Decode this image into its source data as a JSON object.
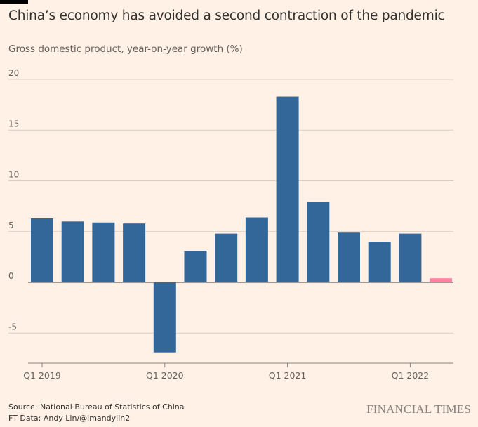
{
  "title": "China’s economy has avoided a second contraction of the pandemic",
  "subtitle": "Gross domestic product, year-on-year growth (%)",
  "source": "Source: National Bureau of Statistics of China",
  "credit": "FT Data: Andy Lin/@imandylin2",
  "brand": "FINANCIAL TIMES",
  "chart_data": {
    "type": "bar",
    "categories": [
      "Q1 2019",
      "Q2 2019",
      "Q3 2019",
      "Q4 2019",
      "Q1 2020",
      "Q2 2020",
      "Q3 2020",
      "Q4 2020",
      "Q1 2021",
      "Q2 2021",
      "Q3 2021",
      "Q4 2021",
      "Q1 2022",
      "Q2 2022"
    ],
    "values": [
      6.3,
      6.0,
      5.9,
      5.8,
      -6.9,
      3.1,
      4.8,
      6.4,
      18.3,
      7.9,
      4.9,
      4.0,
      4.8,
      0.4
    ],
    "highlight_index": 13,
    "colors": {
      "bar": "#336699",
      "highlight": "#ff7fa3"
    },
    "ylim": [
      -8,
      20
    ],
    "yticks": [
      20,
      15,
      10,
      5,
      0,
      -5
    ],
    "ytick_labels": [
      "20",
      "15",
      "10",
      "5",
      "0",
      "-5"
    ],
    "xtick_labels": [
      {
        "index": 0,
        "label": "Q1 2019"
      },
      {
        "index": 4,
        "label": "Q1 2020"
      },
      {
        "index": 8,
        "label": "Q1 2021"
      },
      {
        "index": 12,
        "label": "Q1 2022"
      }
    ],
    "grid": true
  }
}
